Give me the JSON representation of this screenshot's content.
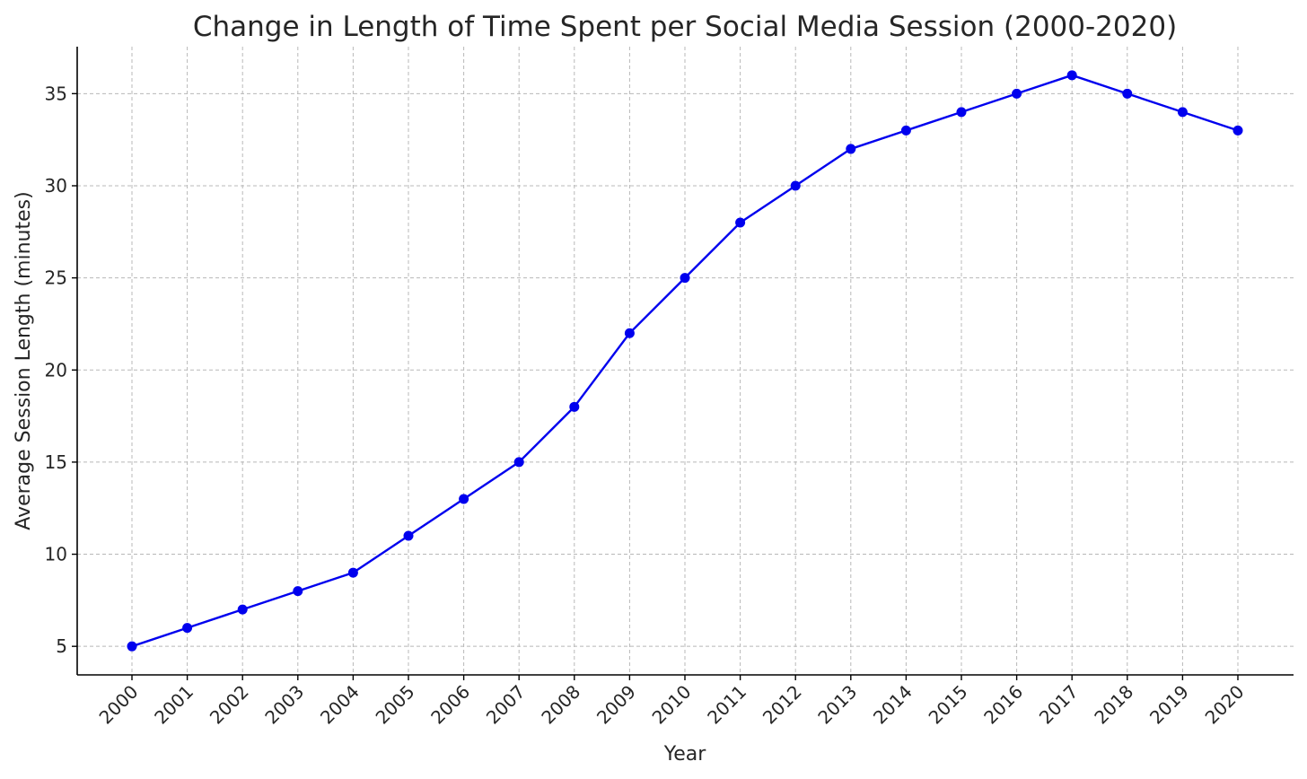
{
  "chart_data": {
    "type": "line",
    "title": "Change in Length of Time Spent per Social Media Session (2000-2020)",
    "xlabel": "Year",
    "ylabel": "Average Session Length (minutes)",
    "x": [
      "2000",
      "2001",
      "2002",
      "2003",
      "2004",
      "2005",
      "2006",
      "2007",
      "2008",
      "2009",
      "2010",
      "2011",
      "2012",
      "2013",
      "2014",
      "2015",
      "2016",
      "2017",
      "2018",
      "2019",
      "2020"
    ],
    "series": [
      {
        "values": [
          5,
          6,
          7,
          8,
          9,
          11,
          13,
          15,
          18,
          22,
          25,
          28,
          30,
          32,
          33,
          34,
          35,
          36,
          35,
          34,
          33
        ],
        "color": "#0000ee",
        "marker": "circle"
      }
    ],
    "ylim": [
      3.45,
      37.55
    ],
    "yticks": [
      5,
      10,
      15,
      20,
      25,
      30,
      35
    ],
    "grid": true,
    "legend": "none"
  }
}
